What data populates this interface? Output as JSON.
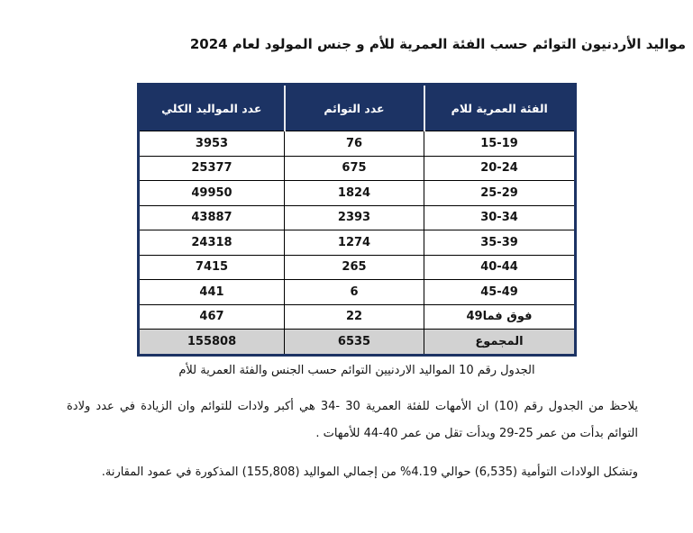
{
  "title": "مواليد الأردنيون التوائم حسب الفئة العمرية للأم و جنس المولود لعام 2024",
  "table": {
    "headers": {
      "age": "الفئة العمرية للام",
      "twins": "عدد التوائم",
      "births": "عدد المواليد الكلي"
    },
    "rows": [
      {
        "age": "15-19",
        "twins": "76",
        "births": "3953"
      },
      {
        "age": "20-24",
        "twins": "675",
        "births": "25377"
      },
      {
        "age": "25-29",
        "twins": "1824",
        "births": "49950"
      },
      {
        "age": "30-34",
        "twins": "2393",
        "births": "43887"
      },
      {
        "age": "35-39",
        "twins": "1274",
        "births": "24318"
      },
      {
        "age": "40-44",
        "twins": "265",
        "births": "7415"
      },
      {
        "age": "45-49",
        "twins": "6",
        "births": "441"
      },
      {
        "age": "49فما‎ فوق",
        "twins": "22",
        "births": "467"
      }
    ],
    "total_row": {
      "age": "المجموع",
      "twins": "6535",
      "births": "155808"
    }
  },
  "caption": "الجدول رقم  10 المواليد الاردنيين التوائم حسب الجنس والفئة العمرية للأم",
  "paragraphs": {
    "p1": "يلاحظ من الجدول رقم (10) ان الأمهات للفئة العمرية 30 -34 هي  أكبر ولادات للتوائم وان الزيادة في عدد ولادة التوائم بدأت من عمر 25-29 وبدأت تقل من عمر 40-44 للأمهات .",
    "p2": "وتشكل الولادات التوأمية (6,535) حوالي 4.19% من إجمالي المواليد (155,808) المذكورة في عمود المقارنة."
  },
  "colors": {
    "header_bg": "#1c3364",
    "header_text": "#ffffff",
    "total_row_bg": "#d2d2d2"
  }
}
